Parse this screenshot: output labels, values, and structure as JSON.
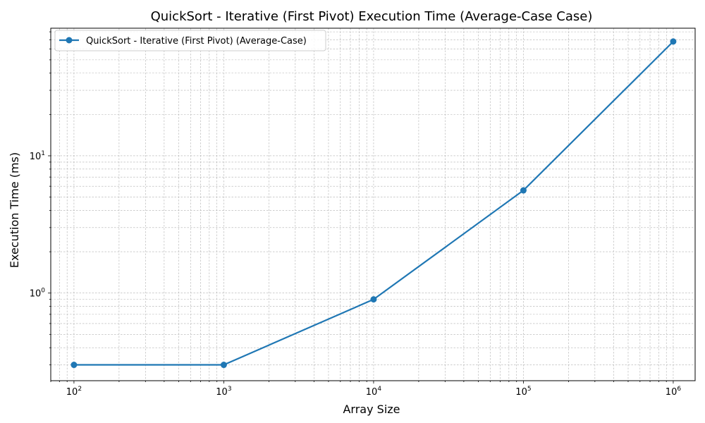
{
  "chart_data": {
    "type": "line",
    "title": "QuickSort - Iterative (First Pivot) Execution Time (Average-Case Case)",
    "xlabel": "Array Size",
    "ylabel": "Execution Time (ms)",
    "x_scale": "log",
    "y_scale": "log",
    "xlim": [
      70,
      1400000
    ],
    "ylim": [
      0.23,
      85
    ],
    "x_ticks": [
      {
        "base": "10",
        "exp": "2",
        "value": 100
      },
      {
        "base": "10",
        "exp": "3",
        "value": 1000
      },
      {
        "base": "10",
        "exp": "4",
        "value": 10000
      },
      {
        "base": "10",
        "exp": "5",
        "value": 100000
      },
      {
        "base": "10",
        "exp": "6",
        "value": 1000000
      }
    ],
    "y_ticks": [
      {
        "base": "10",
        "exp": "0",
        "value": 1
      },
      {
        "base": "10",
        "exp": "1",
        "value": 10
      }
    ],
    "grid": true,
    "legend_position": "top-left",
    "series": [
      {
        "name": "QuickSort - Iterative (First Pivot) (Average-Case)",
        "color": "#1f77b4",
        "marker": "circle",
        "x": [
          100,
          1000,
          10000,
          100000,
          1000000
        ],
        "y": [
          0.3,
          0.3,
          0.9,
          5.6,
          68
        ]
      }
    ]
  }
}
